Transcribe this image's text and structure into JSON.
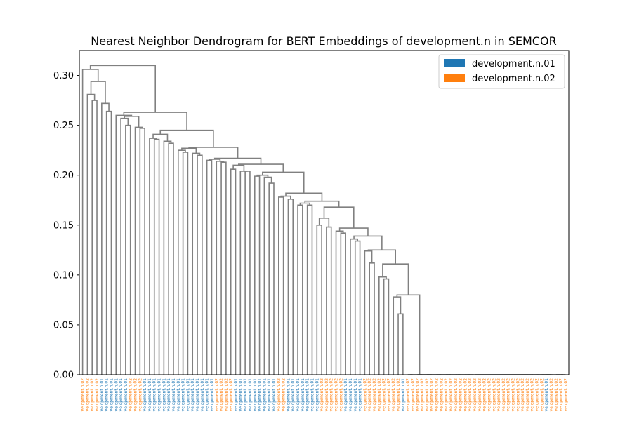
{
  "chart_data": {
    "type": "dendrogram",
    "title": "Nearest Neighbor Dendrogram for BERT Embeddings of development.n in SEMCOR",
    "xlabel": "",
    "ylabel": "",
    "ylim": [
      0,
      0.325
    ],
    "yticks": [
      "0.00",
      "0.05",
      "0.10",
      "0.15",
      "0.20",
      "0.25",
      "0.30"
    ],
    "grid": false,
    "link_color": "#808080",
    "legend": {
      "placement": "top-right",
      "entries": [
        {
          "label": "development.n.01",
          "color": "#1f77b4"
        },
        {
          "label": "development.n.02",
          "color": "#ff7f0e"
        }
      ]
    },
    "leaf_label_text": {
      "development.n.01": "velopment.n.01",
      "development.n.02": "velopment.n.02"
    },
    "leaves": [
      "development.n.02",
      "development.n.02",
      "development.n.02",
      "development.n.02",
      "development.n.01",
      "development.n.01",
      "development.n.01",
      "development.n.01",
      "development.n.01",
      "development.n.01",
      "development.n.02",
      "development.n.02",
      "development.n.02",
      "development.n.01",
      "development.n.01",
      "development.n.01",
      "development.n.01",
      "development.n.01",
      "development.n.01",
      "development.n.01",
      "development.n.01",
      "development.n.01",
      "development.n.01",
      "development.n.01",
      "development.n.01",
      "development.n.01",
      "development.n.01",
      "development.n.01",
      "development.n.02",
      "development.n.02",
      "development.n.02",
      "development.n.02",
      "development.n.01",
      "development.n.01",
      "development.n.01",
      "development.n.01",
      "development.n.01",
      "development.n.01",
      "development.n.01",
      "development.n.01",
      "development.n.01",
      "development.n.02",
      "development.n.02",
      "development.n.01",
      "development.n.01",
      "development.n.01",
      "development.n.01",
      "development.n.01",
      "development.n.01",
      "development.n.01",
      "development.n.02",
      "development.n.02",
      "development.n.02",
      "development.n.02",
      "development.n.02",
      "development.n.01",
      "development.n.01",
      "development.n.01",
      "development.n.01",
      "development.n.02",
      "development.n.02",
      "development.n.02",
      "development.n.02",
      "development.n.02",
      "development.n.02",
      "development.n.02",
      "development.n.02",
      "development.n.01",
      "development.n.02",
      "development.n.02",
      "development.n.02",
      "development.n.02",
      "development.n.02",
      "development.n.02",
      "development.n.02",
      "development.n.02",
      "development.n.02",
      "development.n.02",
      "development.n.02",
      "development.n.02",
      "development.n.02",
      "development.n.02",
      "development.n.02",
      "development.n.02",
      "development.n.02",
      "development.n.02",
      "development.n.02",
      "development.n.02",
      "development.n.02",
      "development.n.02",
      "development.n.02",
      "development.n.02",
      "development.n.02",
      "development.n.02",
      "development.n.02",
      "development.n.02",
      "development.n.02",
      "development.n.01",
      "development.n.02",
      "development.n.02",
      "development.n.02",
      "development.n.02"
    ],
    "merge_heights": [
      0.31,
      0.306,
      0.294,
      0.281,
      0.275,
      0.272,
      0.264,
      0.263,
      0.26,
      0.259,
      0.257,
      0.25,
      0.248,
      0.247,
      0.245,
      0.241,
      0.237,
      0.236,
      0.234,
      0.232,
      0.228,
      0.227,
      0.225,
      0.223,
      0.222,
      0.22,
      0.217,
      0.216,
      0.215,
      0.214,
      0.213,
      0.211,
      0.21,
      0.206,
      0.204,
      0.204,
      0.203,
      0.2,
      0.199,
      0.198,
      0.192,
      0.182,
      0.179,
      0.178,
      0.176,
      0.174,
      0.172,
      0.17,
      0.17,
      0.168,
      0.157,
      0.15,
      0.148,
      0.147,
      0.144,
      0.142,
      0.139,
      0.136,
      0.134,
      0.125,
      0.124,
      0.112,
      0.111,
      0.098,
      0.096,
      0.08,
      0.078,
      0.061,
      0.0,
      0.0
    ]
  }
}
